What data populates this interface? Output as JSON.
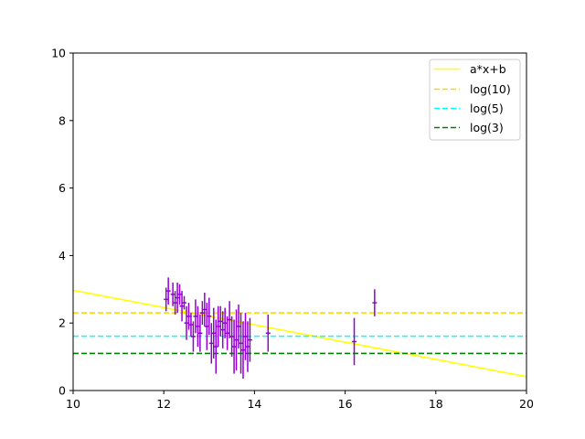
{
  "chart_data": {
    "type": "scatter",
    "title": "",
    "xlabel": "",
    "ylabel": "",
    "xlim": [
      10,
      20
    ],
    "ylim": [
      0,
      10
    ],
    "xticks": [
      10,
      12,
      14,
      16,
      18,
      20
    ],
    "yticks": [
      0,
      2,
      4,
      6,
      8,
      10
    ],
    "grid": false,
    "legend_position": "top-right",
    "colors": {
      "data": "#9400d3",
      "fit": "#ffff00",
      "log10": "#ffd700",
      "log5": "#00ffff",
      "log3": "#008000",
      "axes": "#000000"
    },
    "lines": [
      {
        "name": "a*x+b",
        "kind": "linear",
        "color": "#ffff00",
        "dash": "solid",
        "x": [
          10,
          20
        ],
        "y": [
          2.97,
          0.41
        ]
      },
      {
        "name": "log(10)",
        "kind": "horizontal",
        "color": "#ffd700",
        "dash": "dashed",
        "y": 2.303
      },
      {
        "name": "log(5)",
        "kind": "horizontal",
        "color": "#00ffff",
        "dash": "dashed",
        "y": 1.609
      },
      {
        "name": "log(3)",
        "kind": "horizontal",
        "color": "#008000",
        "dash": "dashed",
        "y": 1.099
      }
    ],
    "series": [
      {
        "kind": "errorbar",
        "color": "#9400d3",
        "points": [
          {
            "x": 12.05,
            "y": 2.7,
            "xerr": 0.05,
            "yerr": 0.35
          },
          {
            "x": 12.1,
            "y": 2.95,
            "xerr": 0.05,
            "yerr": 0.4
          },
          {
            "x": 12.2,
            "y": 2.85,
            "xerr": 0.05,
            "yerr": 0.35
          },
          {
            "x": 12.25,
            "y": 2.6,
            "xerr": 0.05,
            "yerr": 0.35
          },
          {
            "x": 12.3,
            "y": 2.75,
            "xerr": 0.05,
            "yerr": 0.45
          },
          {
            "x": 12.35,
            "y": 2.85,
            "xerr": 0.05,
            "yerr": 0.3
          },
          {
            "x": 12.4,
            "y": 2.5,
            "xerr": 0.05,
            "yerr": 0.45
          },
          {
            "x": 12.45,
            "y": 2.6,
            "xerr": 0.05,
            "yerr": 0.2
          },
          {
            "x": 12.5,
            "y": 2.0,
            "xerr": 0.05,
            "yerr": 0.5
          },
          {
            "x": 12.55,
            "y": 2.2,
            "xerr": 0.05,
            "yerr": 0.4
          },
          {
            "x": 12.6,
            "y": 1.95,
            "xerr": 0.05,
            "yerr": 0.35
          },
          {
            "x": 12.65,
            "y": 1.6,
            "xerr": 0.05,
            "yerr": 0.45
          },
          {
            "x": 12.7,
            "y": 2.2,
            "xerr": 0.05,
            "yerr": 0.5
          },
          {
            "x": 12.75,
            "y": 1.9,
            "xerr": 0.05,
            "yerr": 0.6
          },
          {
            "x": 12.8,
            "y": 1.7,
            "xerr": 0.05,
            "yerr": 0.55
          },
          {
            "x": 12.85,
            "y": 2.3,
            "xerr": 0.05,
            "yerr": 0.35
          },
          {
            "x": 12.9,
            "y": 2.4,
            "xerr": 0.05,
            "yerr": 0.5
          },
          {
            "x": 12.95,
            "y": 1.9,
            "xerr": 0.05,
            "yerr": 0.7
          },
          {
            "x": 13.0,
            "y": 2.2,
            "xerr": 0.05,
            "yerr": 0.55
          },
          {
            "x": 13.05,
            "y": 1.4,
            "xerr": 0.05,
            "yerr": 0.6
          },
          {
            "x": 13.1,
            "y": 1.7,
            "xerr": 0.05,
            "yerr": 0.75
          },
          {
            "x": 13.15,
            "y": 1.3,
            "xerr": 0.05,
            "yerr": 0.8
          },
          {
            "x": 13.2,
            "y": 1.9,
            "xerr": 0.05,
            "yerr": 0.6
          },
          {
            "x": 13.25,
            "y": 2.05,
            "xerr": 0.05,
            "yerr": 0.45
          },
          {
            "x": 13.3,
            "y": 1.8,
            "xerr": 0.05,
            "yerr": 0.55
          },
          {
            "x": 13.35,
            "y": 2.0,
            "xerr": 0.05,
            "yerr": 0.45
          },
          {
            "x": 13.4,
            "y": 1.7,
            "xerr": 0.05,
            "yerr": 0.5
          },
          {
            "x": 13.45,
            "y": 2.1,
            "xerr": 0.05,
            "yerr": 0.55
          },
          {
            "x": 13.5,
            "y": 1.6,
            "xerr": 0.05,
            "yerr": 0.6
          },
          {
            "x": 13.55,
            "y": 1.3,
            "xerr": 0.05,
            "yerr": 0.8
          },
          {
            "x": 13.6,
            "y": 1.5,
            "xerr": 0.05,
            "yerr": 0.9
          },
          {
            "x": 13.65,
            "y": 1.9,
            "xerr": 0.05,
            "yerr": 0.65
          },
          {
            "x": 13.7,
            "y": 1.4,
            "xerr": 0.05,
            "yerr": 0.9
          },
          {
            "x": 13.75,
            "y": 1.2,
            "xerr": 0.05,
            "yerr": 0.85
          },
          {
            "x": 13.8,
            "y": 1.6,
            "xerr": 0.05,
            "yerr": 0.7
          },
          {
            "x": 13.85,
            "y": 1.3,
            "xerr": 0.05,
            "yerr": 0.75
          },
          {
            "x": 13.9,
            "y": 1.5,
            "xerr": 0.05,
            "yerr": 0.65
          },
          {
            "x": 14.3,
            "y": 1.7,
            "xerr": 0.05,
            "yerr": 0.55
          },
          {
            "x": 16.2,
            "y": 1.45,
            "xerr": 0.05,
            "yerr": 0.7
          },
          {
            "x": 16.65,
            "y": 2.6,
            "xerr": 0.05,
            "yerr": 0.4
          }
        ]
      }
    ]
  }
}
